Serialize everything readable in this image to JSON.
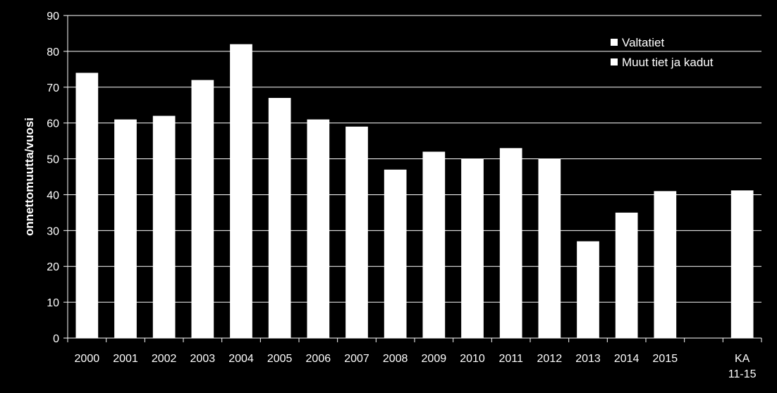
{
  "chart_data": {
    "type": "bar",
    "title": "",
    "xlabel": "",
    "ylabel": "onnettomuutta/vuosi",
    "ylim": [
      0,
      90
    ],
    "yticks": [
      0,
      10,
      20,
      30,
      40,
      50,
      60,
      70,
      80,
      90
    ],
    "grid": true,
    "legend_position": "top-right",
    "categories": [
      "2000",
      "2001",
      "2002",
      "2003",
      "2004",
      "2005",
      "2006",
      "2007",
      "2008",
      "2009",
      "2010",
      "2011",
      "2012",
      "2013",
      "2014",
      "2015",
      "",
      "KA\n11-15"
    ],
    "series": [
      {
        "name": "Valtatiet",
        "color": "#ffffff",
        "values": [
          74,
          61,
          62,
          72,
          82,
          67,
          61,
          59,
          47,
          52,
          50,
          53,
          50,
          27,
          35,
          41,
          null,
          41.2
        ]
      },
      {
        "name": "Muut tiet ja kadut",
        "color": "#ffffff",
        "values": [
          null,
          null,
          null,
          null,
          null,
          null,
          null,
          null,
          null,
          null,
          null,
          null,
          null,
          null,
          null,
          null,
          null,
          null
        ]
      }
    ],
    "colors": {
      "background": "#000000",
      "bar": "#ffffff",
      "grid": "#ffffff",
      "axis": "#ffffff"
    }
  }
}
